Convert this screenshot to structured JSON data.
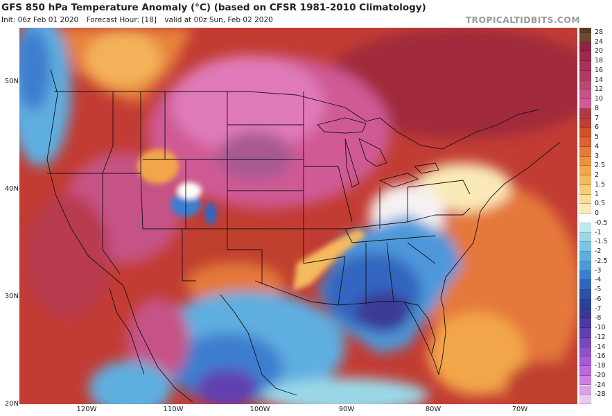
{
  "header": {
    "title": "GFS 850 hPa Temperature Anomaly (°C) (based on CFSR 1981-2010 Climatology)",
    "init": "Init: 06z Feb 01 2020",
    "forecast_hour": "Forecast Hour: [18]",
    "valid": "valid at 00z Sun, Feb 02 2020",
    "brand": "TROPICALTIDBITS.COM"
  },
  "axes": {
    "lat_labels": [
      "50N",
      "40N",
      "30N",
      "20N"
    ],
    "lon_labels": [
      "120W",
      "110W",
      "100W",
      "90W",
      "80W",
      "70W"
    ]
  },
  "colorbar": {
    "labels": [
      "28",
      "24",
      "20",
      "18",
      "16",
      "14",
      "12",
      "10",
      "8",
      "7",
      "6",
      "5",
      "4",
      "3",
      "2.5",
      "2",
      "1.5",
      "1",
      "0.5",
      "0",
      "-0.5",
      "-1",
      "-1.5",
      "-2",
      "-2.5",
      "-3",
      "-4",
      "-5",
      "-6",
      "-7",
      "-8",
      "-10",
      "-12",
      "-14",
      "-16",
      "-18",
      "-20",
      "-24",
      "-28"
    ],
    "colors": [
      "#6e4a30",
      "#8e2640",
      "#9e2a4c",
      "#a83258",
      "#b23a64",
      "#bb4872",
      "#c65286",
      "#cf5a95",
      "#b03a44",
      "#c0402f",
      "#d0502a",
      "#db6232",
      "#e5783a",
      "#ee9040",
      "#f3a64a",
      "#f5ba60",
      "#f6cc7a",
      "#f8dc98",
      "#faeab8",
      "#ffffff",
      "#bfe8ee",
      "#9ad8e8",
      "#7cc4e4",
      "#5eaee0",
      "#4e98da",
      "#3e7ecf",
      "#3066c0",
      "#2a52ac",
      "#2c4298",
      "#3a3a96",
      "#4a3aa2",
      "#6040b0",
      "#7848c0",
      "#9050cc",
      "#a858d8",
      "#bc68de",
      "#cc80e4",
      "#dca0ea",
      "#ecc8ee"
    ]
  }
}
